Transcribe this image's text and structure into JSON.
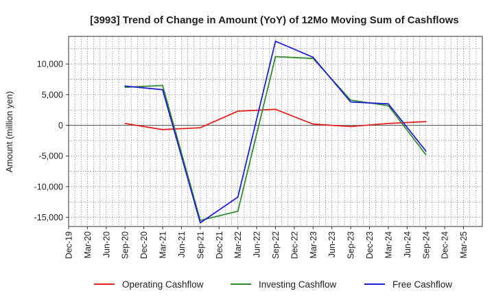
{
  "chart_data": {
    "type": "line",
    "title": "[3993]  Trend of Change in Amount (YoY) of 12Mo Moving Sum of Cashflows",
    "xlabel": "",
    "ylabel": "Amount (million yen)",
    "categories": [
      "Dec-19",
      "Mar-20",
      "Jun-20",
      "Sep-20",
      "Dec-20",
      "Mar-21",
      "Jun-21",
      "Sep-21",
      "Dec-21",
      "Mar-22",
      "Jun-22",
      "Sep-22",
      "Dec-22",
      "Mar-23",
      "Jun-23",
      "Sep-23",
      "Dec-23",
      "Mar-24",
      "Jun-24",
      "Sep-24",
      "Dec-24",
      "Mar-25"
    ],
    "ylim": [
      -16500,
      14500
    ],
    "yticks": [
      -15000,
      -10000,
      -5000,
      0,
      5000,
      10000
    ],
    "ytick_labels": [
      "-15,000",
      "-10,000",
      "-5,000",
      "0",
      "5,000",
      "10,000"
    ],
    "grid": true,
    "legend_position": "bottom",
    "series": [
      {
        "name": "Operating Cashflow",
        "color": "#e8211d",
        "values": [
          null,
          null,
          null,
          300,
          null,
          -700,
          null,
          -400,
          null,
          2300,
          null,
          2600,
          null,
          200,
          null,
          -200,
          null,
          300,
          null,
          600,
          null,
          null
        ]
      },
      {
        "name": "Investing Cashflow",
        "color": "#2e8b2e",
        "values": [
          null,
          null,
          null,
          6200,
          null,
          6500,
          null,
          -15500,
          null,
          -14000,
          null,
          11200,
          null,
          10900,
          null,
          4100,
          null,
          3200,
          null,
          -4800,
          null,
          null
        ]
      },
      {
        "name": "Free Cashflow",
        "color": "#1f1fd6",
        "values": [
          null,
          null,
          null,
          6400,
          null,
          5800,
          null,
          -15900,
          null,
          -11700,
          null,
          13700,
          null,
          11100,
          null,
          3800,
          null,
          3500,
          null,
          -4200,
          null,
          null
        ]
      }
    ]
  }
}
